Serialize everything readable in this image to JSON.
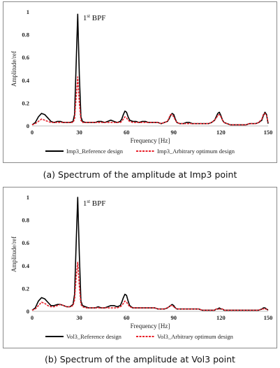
{
  "chart_data": [
    {
      "type": "line",
      "xlabel": "Frequency [Hz]",
      "ylabel": "Amplitude/ref",
      "xlim": [
        0,
        150
      ],
      "ylim": [
        0,
        1
      ],
      "xticks": [
        0,
        30,
        60,
        90,
        120,
        150
      ],
      "yticks": [
        0,
        0.2,
        0.4,
        0.6,
        0.8,
        1
      ],
      "xtick_labels": [
        "0",
        "30",
        "60",
        "90",
        "120",
        "150"
      ],
      "ytick_labels": [
        "0",
        "0.2",
        "0.4",
        "0.6",
        "0.8",
        "1"
      ],
      "annotation": {
        "text": "1st BPF",
        "base": "1",
        "sup": "st",
        "rest": " BPF",
        "x": 31,
        "y": 0.95
      },
      "grid": false,
      "legend_position": "bottom",
      "series": [
        {
          "name": "Imp3_Reference design",
          "color": "#000000",
          "style": "solid",
          "x": [
            0,
            2,
            4,
            6,
            8,
            10,
            12,
            14,
            16,
            18,
            20,
            22,
            24,
            26,
            27,
            28,
            29,
            30,
            31,
            32,
            34,
            36,
            38,
            40,
            42,
            44,
            46,
            48,
            50,
            52,
            54,
            56,
            57,
            58,
            59,
            60,
            61,
            62,
            64,
            66,
            68,
            70,
            72,
            74,
            76,
            78,
            80,
            82,
            84,
            86,
            87,
            88,
            89,
            90,
            91,
            92,
            94,
            96,
            98,
            100,
            102,
            104,
            106,
            108,
            110,
            112,
            114,
            116,
            117,
            118,
            119,
            120,
            121,
            122,
            124,
            126,
            128,
            130,
            132,
            134,
            136,
            138,
            140,
            142,
            144,
            146,
            147,
            148,
            149,
            150
          ],
          "y": [
            0.01,
            0.03,
            0.08,
            0.11,
            0.1,
            0.07,
            0.04,
            0.03,
            0.04,
            0.04,
            0.03,
            0.03,
            0.03,
            0.04,
            0.1,
            0.55,
            0.98,
            0.45,
            0.08,
            0.04,
            0.03,
            0.03,
            0.03,
            0.03,
            0.04,
            0.04,
            0.03,
            0.04,
            0.05,
            0.04,
            0.03,
            0.04,
            0.06,
            0.1,
            0.13,
            0.12,
            0.08,
            0.05,
            0.04,
            0.04,
            0.03,
            0.04,
            0.04,
            0.03,
            0.03,
            0.03,
            0.03,
            0.02,
            0.03,
            0.04,
            0.06,
            0.09,
            0.11,
            0.1,
            0.06,
            0.03,
            0.02,
            0.02,
            0.03,
            0.03,
            0.02,
            0.02,
            0.02,
            0.02,
            0.02,
            0.02,
            0.03,
            0.05,
            0.08,
            0.11,
            0.12,
            0.09,
            0.05,
            0.03,
            0.02,
            0.01,
            0.01,
            0.01,
            0.01,
            0.01,
            0.01,
            0.02,
            0.02,
            0.02,
            0.03,
            0.05,
            0.09,
            0.12,
            0.1,
            0.02
          ]
        },
        {
          "name": "Imp3_Arbitrary optimum design",
          "color": "#e8202a",
          "style": "dashed",
          "x": [
            0,
            2,
            4,
            6,
            8,
            10,
            12,
            14,
            16,
            18,
            20,
            22,
            24,
            26,
            27,
            28,
            29,
            30,
            31,
            32,
            34,
            36,
            38,
            40,
            42,
            44,
            46,
            48,
            50,
            52,
            54,
            56,
            57,
            58,
            59,
            60,
            61,
            62,
            64,
            66,
            68,
            70,
            72,
            74,
            76,
            78,
            80,
            82,
            84,
            86,
            87,
            88,
            89,
            90,
            91,
            92,
            94,
            96,
            98,
            100,
            102,
            104,
            106,
            108,
            110,
            112,
            114,
            116,
            117,
            118,
            119,
            120,
            121,
            122,
            124,
            126,
            128,
            130,
            132,
            134,
            136,
            138,
            140,
            142,
            144,
            146,
            147,
            148,
            149,
            150
          ],
          "y": [
            0.01,
            0.02,
            0.04,
            0.06,
            0.05,
            0.04,
            0.03,
            0.03,
            0.03,
            0.03,
            0.03,
            0.03,
            0.03,
            0.03,
            0.06,
            0.25,
            0.43,
            0.2,
            0.05,
            0.03,
            0.03,
            0.03,
            0.03,
            0.03,
            0.03,
            0.03,
            0.03,
            0.03,
            0.03,
            0.03,
            0.03,
            0.03,
            0.04,
            0.06,
            0.08,
            0.07,
            0.05,
            0.04,
            0.03,
            0.03,
            0.03,
            0.03,
            0.03,
            0.03,
            0.03,
            0.03,
            0.03,
            0.02,
            0.03,
            0.04,
            0.07,
            0.1,
            0.1,
            0.08,
            0.05,
            0.03,
            0.02,
            0.02,
            0.02,
            0.02,
            0.02,
            0.02,
            0.02,
            0.02,
            0.02,
            0.02,
            0.03,
            0.05,
            0.07,
            0.09,
            0.1,
            0.08,
            0.05,
            0.03,
            0.02,
            0.01,
            0.01,
            0.01,
            0.01,
            0.01,
            0.01,
            0.02,
            0.02,
            0.02,
            0.03,
            0.06,
            0.1,
            0.11,
            0.09,
            0.03
          ]
        }
      ]
    },
    {
      "type": "line",
      "xlabel": "Frequency [Hz]",
      "ylabel": "Amplitude/ref",
      "xlim": [
        0,
        150
      ],
      "ylim": [
        0,
        1
      ],
      "xticks": [
        0,
        30,
        60,
        90,
        120,
        150
      ],
      "yticks": [
        0,
        0.2,
        0.4,
        0.6,
        0.8,
        1
      ],
      "xtick_labels": [
        "0",
        "30",
        "60",
        "90",
        "120",
        "150"
      ],
      "ytick_labels": [
        "0",
        "0.2",
        "0.4",
        "0.6",
        "0.8",
        "1"
      ],
      "annotation": {
        "text": "1st BPF",
        "base": "1",
        "sup": "st",
        "rest": " BPF",
        "x": 31,
        "y": 0.95
      },
      "grid": false,
      "legend_position": "bottom",
      "series": [
        {
          "name": "Vol3_Reference design",
          "color": "#000000",
          "style": "solid",
          "x": [
            0,
            2,
            4,
            6,
            8,
            10,
            12,
            14,
            16,
            18,
            20,
            22,
            24,
            26,
            27,
            28,
            29,
            30,
            31,
            32,
            34,
            36,
            38,
            40,
            42,
            44,
            46,
            48,
            50,
            52,
            54,
            56,
            57,
            58,
            59,
            60,
            61,
            62,
            64,
            66,
            68,
            70,
            72,
            74,
            76,
            78,
            80,
            82,
            84,
            86,
            87,
            88,
            89,
            90,
            91,
            92,
            94,
            96,
            98,
            100,
            102,
            104,
            106,
            108,
            110,
            112,
            114,
            116,
            117,
            118,
            119,
            120,
            121,
            122,
            124,
            126,
            128,
            130,
            132,
            134,
            136,
            138,
            140,
            142,
            144,
            146,
            147,
            148,
            149,
            150
          ],
          "y": [
            0.01,
            0.03,
            0.09,
            0.12,
            0.11,
            0.08,
            0.05,
            0.05,
            0.06,
            0.06,
            0.05,
            0.04,
            0.04,
            0.06,
            0.15,
            0.6,
            1.0,
            0.5,
            0.09,
            0.05,
            0.04,
            0.03,
            0.03,
            0.03,
            0.04,
            0.03,
            0.03,
            0.04,
            0.05,
            0.05,
            0.04,
            0.05,
            0.08,
            0.12,
            0.15,
            0.14,
            0.09,
            0.05,
            0.03,
            0.03,
            0.03,
            0.03,
            0.03,
            0.03,
            0.03,
            0.03,
            0.02,
            0.02,
            0.02,
            0.03,
            0.04,
            0.05,
            0.06,
            0.05,
            0.03,
            0.02,
            0.02,
            0.02,
            0.02,
            0.02,
            0.02,
            0.02,
            0.02,
            0.01,
            0.01,
            0.01,
            0.01,
            0.01,
            0.02,
            0.02,
            0.03,
            0.02,
            0.02,
            0.01,
            0.01,
            0.01,
            0.01,
            0.01,
            0.01,
            0.01,
            0.01,
            0.01,
            0.01,
            0.01,
            0.01,
            0.02,
            0.03,
            0.03,
            0.02,
            0.01
          ]
        },
        {
          "name": "Vol3_Arbitrary optimum design",
          "color": "#e8202a",
          "style": "dashed",
          "x": [
            0,
            2,
            4,
            6,
            8,
            10,
            12,
            14,
            16,
            18,
            20,
            22,
            24,
            26,
            27,
            28,
            29,
            30,
            31,
            32,
            34,
            36,
            38,
            40,
            42,
            44,
            46,
            48,
            50,
            52,
            54,
            56,
            57,
            58,
            59,
            60,
            61,
            62,
            64,
            66,
            68,
            70,
            72,
            74,
            76,
            78,
            80,
            82,
            84,
            86,
            87,
            88,
            89,
            90,
            91,
            92,
            94,
            96,
            98,
            100,
            102,
            104,
            106,
            108,
            110,
            112,
            114,
            116,
            117,
            118,
            119,
            120,
            121,
            122,
            124,
            126,
            128,
            130,
            132,
            134,
            136,
            138,
            140,
            142,
            144,
            146,
            147,
            148,
            149,
            150
          ],
          "y": [
            0.01,
            0.02,
            0.05,
            0.08,
            0.07,
            0.05,
            0.04,
            0.04,
            0.05,
            0.06,
            0.05,
            0.04,
            0.04,
            0.05,
            0.1,
            0.3,
            0.43,
            0.22,
            0.06,
            0.04,
            0.03,
            0.03,
            0.03,
            0.03,
            0.03,
            0.03,
            0.03,
            0.03,
            0.03,
            0.03,
            0.03,
            0.04,
            0.05,
            0.07,
            0.09,
            0.08,
            0.06,
            0.04,
            0.03,
            0.03,
            0.03,
            0.03,
            0.03,
            0.03,
            0.03,
            0.03,
            0.02,
            0.02,
            0.02,
            0.03,
            0.04,
            0.05,
            0.05,
            0.04,
            0.03,
            0.02,
            0.02,
            0.02,
            0.02,
            0.02,
            0.02,
            0.02,
            0.02,
            0.01,
            0.01,
            0.01,
            0.01,
            0.01,
            0.02,
            0.02,
            0.02,
            0.02,
            0.02,
            0.01,
            0.01,
            0.01,
            0.01,
            0.01,
            0.01,
            0.01,
            0.01,
            0.01,
            0.01,
            0.01,
            0.01,
            0.02,
            0.02,
            0.02,
            0.02,
            0.01
          ]
        }
      ]
    }
  ],
  "captions": {
    "a": "(a)  Spectrum  of  the  amplitude  at  Imp3  point",
    "b": "(b)  Spectrum  of  the  amplitude  at  Vol3  point"
  }
}
